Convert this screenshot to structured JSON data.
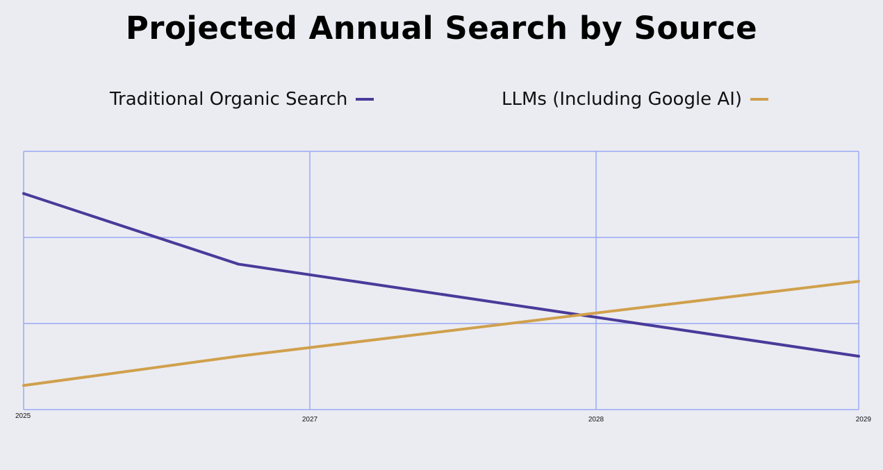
{
  "chart_data": {
    "type": "line",
    "title": "Projected Annual Search by Source",
    "xlabel": "",
    "ylabel": "",
    "x_ticks": [
      2025,
      2027,
      2028,
      2029
    ],
    "ylim": [
      0,
      3
    ],
    "y_gridlines": [
      0,
      1,
      2,
      3
    ],
    "grid": true,
    "legend_placement": "top",
    "series": [
      {
        "name": "Traditional Organic Search",
        "color": "#4a3a9a",
        "x": [
          2025,
          2026.5,
          2029
        ],
        "y": [
          2.51,
          1.69,
          0.62
        ]
      },
      {
        "name": "LLMs (Including Google AI)",
        "color": "#d0a04c",
        "x": [
          2025,
          2026.5,
          2029
        ],
        "y": [
          0.28,
          0.62,
          1.49
        ]
      }
    ],
    "grid_color": "#9aa8f5"
  }
}
